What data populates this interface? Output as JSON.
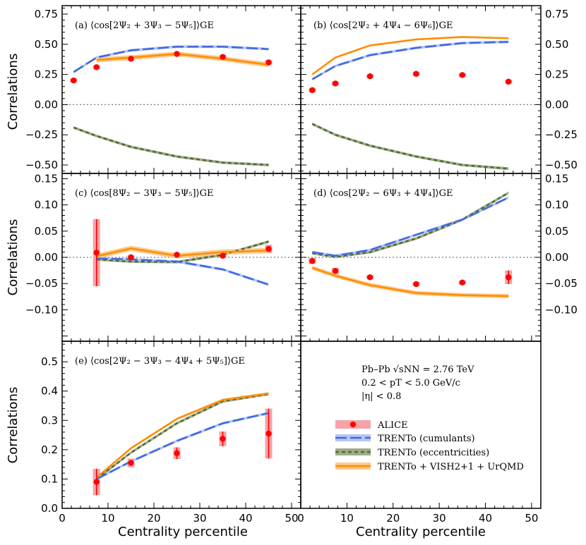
{
  "chart_data": {
    "type": "line",
    "xlabel": "Centrality percentile",
    "ylabel": "Correlations",
    "xlim": [
      0,
      52
    ],
    "xticks": [
      0,
      10,
      20,
      30,
      40,
      50
    ],
    "legend": {
      "placement": "bottom-right",
      "entries": [
        {
          "key": "alice",
          "label": "ALICE"
        },
        {
          "key": "cumulants",
          "label": "TRENTo (cumulants)"
        },
        {
          "key": "ecc",
          "label": "TRENTo (eccentricities)"
        },
        {
          "key": "vish",
          "label": "TRENTo + VISH2+1 + UrQMD"
        }
      ]
    },
    "info": [
      "Pb–Pb √sNN = 2.76 TeV",
      "0.2 < pT < 5.0 GeV/c",
      "|η| < 0.8"
    ],
    "colors": {
      "alice": "#ff0000",
      "alice_band": "#f4a3a8",
      "cumulants": "#4169e1",
      "ecc": "#556b2f",
      "vish": "#ff8c00"
    },
    "panels": [
      {
        "id": "a",
        "title": "(a) ⟨cos[2Ψ₂ + 3Ψ₃ − 5Ψ₅]⟩GE",
        "ylim": [
          -0.57,
          0.82
        ],
        "yticks": [
          -0.5,
          -0.25,
          0.0,
          0.25,
          0.5,
          0.75
        ],
        "ytick_labels": [
          "−0.50",
          "−0.25",
          "0.00",
          "0.25",
          "0.50",
          "0.75"
        ],
        "x": [
          2.5,
          7.5,
          15,
          25,
          35,
          45
        ],
        "alice": [
          0.2,
          0.31,
          0.38,
          0.42,
          0.395,
          0.35
        ],
        "alice_err": [
          0.01,
          0.015,
          0.015,
          0.015,
          0.015,
          0.015
        ],
        "model_x": [
          2.5,
          7.5,
          15,
          25,
          35,
          45
        ],
        "cumulants": [
          0.27,
          0.39,
          0.45,
          0.48,
          0.48,
          0.46
        ],
        "ecc": [
          -0.19,
          -0.26,
          -0.35,
          -0.43,
          -0.48,
          -0.5
        ],
        "vish": [
          null,
          0.37,
          0.39,
          0.42,
          0.38,
          0.33
        ],
        "vish_band": 0.02
      },
      {
        "id": "b",
        "title": "(b) ⟨cos[2Ψ₂ + 4Ψ₄ − 6Ψ₆]⟩GE",
        "ylim": [
          -0.57,
          0.82
        ],
        "yticks": [
          -0.5,
          -0.25,
          0.0,
          0.25,
          0.5,
          0.75
        ],
        "ytick_labels": [
          "−0.50",
          "−0.25",
          "0.00",
          "0.25",
          "0.50",
          "0.75"
        ],
        "x": [
          2.5,
          7.5,
          15,
          25,
          35,
          45
        ],
        "alice": [
          0.12,
          0.175,
          0.235,
          0.255,
          0.245,
          0.19
        ],
        "alice_err": [
          0.012,
          0.012,
          0.015,
          0.015,
          0.015,
          0.012
        ],
        "model_x": [
          2.5,
          7.5,
          15,
          25,
          35,
          45
        ],
        "cumulants": [
          0.21,
          0.32,
          0.41,
          0.47,
          0.51,
          0.52
        ],
        "ecc": [
          -0.16,
          -0.25,
          -0.34,
          -0.43,
          -0.5,
          -0.53
        ],
        "vish": [
          0.25,
          0.39,
          0.49,
          0.54,
          0.56,
          0.55
        ],
        "vish_band": 0.008
      },
      {
        "id": "c",
        "title": "(c) ⟨cos[8Ψ₂ − 3Ψ₃ − 5Ψ₅]⟩GE",
        "ylim": [
          -0.16,
          0.16
        ],
        "yticks": [
          -0.1,
          -0.05,
          0.0,
          0.05,
          0.1,
          0.15
        ],
        "ytick_labels": [
          "−0.10",
          "−0.05",
          "0.00",
          "0.05",
          "0.10",
          "0.15"
        ],
        "x": [
          7.5,
          15,
          25,
          35,
          45
        ],
        "alice": [
          0.009,
          0.0,
          0.005,
          0.003,
          0.016
        ],
        "alice_err": [
          0.064,
          0.003,
          0.003,
          0.004,
          0.008
        ],
        "model_x": [
          7.5,
          15,
          25,
          35,
          45
        ],
        "cumulants": [
          -0.002,
          -0.004,
          -0.008,
          -0.023,
          -0.052
        ],
        "ecc": [
          -0.004,
          -0.008,
          -0.009,
          0.005,
          0.03
        ],
        "vish": [
          0.002,
          0.017,
          0.003,
          0.01,
          0.013
        ],
        "vish_band": 0.005
      },
      {
        "id": "d",
        "title": "(d) ⟨cos[2Ψ₂ − 6Ψ₃ + 4Ψ₄]⟩GE",
        "ylim": [
          -0.16,
          0.16
        ],
        "yticks": [
          -0.1,
          -0.05,
          0.0,
          0.05,
          0.1,
          0.15
        ],
        "ytick_labels": [
          "−0.10",
          "−0.05",
          "0.00",
          "0.05",
          "0.10",
          "0.15"
        ],
        "x": [
          2.5,
          7.5,
          15,
          25,
          35,
          45
        ],
        "alice": [
          -0.007,
          -0.026,
          -0.038,
          -0.051,
          -0.048,
          -0.038
        ],
        "alice_err": [
          0.006,
          0.006,
          0.003,
          0.004,
          0.003,
          0.013
        ],
        "model_x": [
          2.5,
          7.5,
          15,
          25,
          35,
          45
        ],
        "cumulants": [
          0.01,
          0.003,
          0.014,
          0.043,
          0.072,
          0.114
        ],
        "ecc": [
          0.008,
          0.001,
          0.01,
          0.036,
          0.072,
          0.123
        ],
        "vish": [
          -0.02,
          -0.035,
          -0.053,
          -0.068,
          -0.072,
          -0.074
        ],
        "vish_band": 0.004
      },
      {
        "id": "e",
        "title": "(e) ⟨cos[2Ψ₂ − 3Ψ₃ − 4Ψ₄ + 5Ψ₅]⟩GE",
        "ylim": [
          0.0,
          0.57
        ],
        "yticks": [
          0.0,
          0.1,
          0.2,
          0.3,
          0.4,
          0.5
        ],
        "ytick_labels": [
          "0.0",
          "0.1",
          "0.2",
          "0.3",
          "0.4",
          "0.5"
        ],
        "x": [
          7.5,
          15,
          25,
          35,
          45
        ],
        "alice": [
          0.09,
          0.155,
          0.188,
          0.237,
          0.255
        ],
        "alice_err": [
          0.045,
          0.015,
          0.02,
          0.025,
          0.085
        ],
        "model_x": [
          7.5,
          15,
          25,
          35,
          45
        ],
        "cumulants": [
          0.1,
          0.16,
          0.23,
          0.29,
          0.325
        ],
        "ecc": [
          0.1,
          0.19,
          0.29,
          0.365,
          0.39
        ],
        "vish": [
          0.105,
          0.205,
          0.305,
          0.37,
          0.392
        ],
        "vish_band": 0.004
      }
    ]
  }
}
